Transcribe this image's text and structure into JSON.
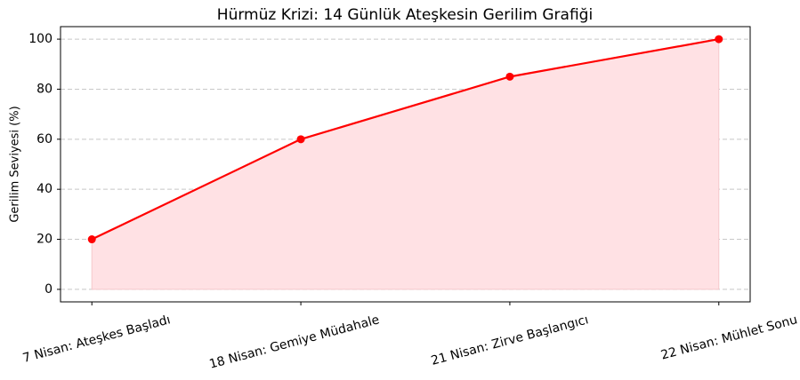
{
  "chart_data": {
    "type": "line",
    "title": "Hürmüz Krizi: 14 Günlük Ateşkesin Gerilim Grafiği",
    "y_label": "Gerilim Seviyesi (%)",
    "categories": [
      "7 Nisan: Ateşkes Başladı",
      "18 Nisan: Gemiye Müdahale",
      "21 Nisan: Zirve Başlangıcı",
      "22 Nisan: Mühlet Sonu"
    ],
    "values": [
      20,
      60,
      85,
      100
    ],
    "color": "#ff0000",
    "fill_color": "#ffe1e4",
    "ylim": [
      -5,
      105
    ],
    "yticks": [
      0,
      20,
      40,
      60,
      80,
      100
    ],
    "grid": true
  }
}
